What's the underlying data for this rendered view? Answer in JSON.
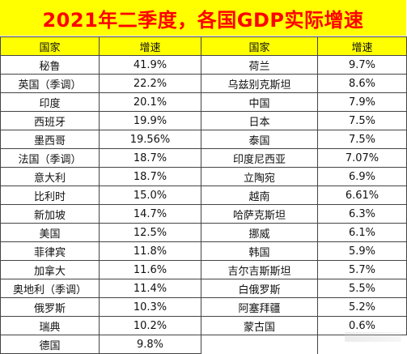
{
  "title": "2021年二季度，各国GDP实际增速",
  "headers": {
    "country": "国家",
    "growth": "增速"
  },
  "left_rows": [
    {
      "country": "秘鲁",
      "growth": "41.9%"
    },
    {
      "country": "英国（季调）",
      "growth": "22.2%"
    },
    {
      "country": "印度",
      "growth": "20.1%"
    },
    {
      "country": "西班牙",
      "growth": "19.9%"
    },
    {
      "country": "墨西哥",
      "growth": "19.56%"
    },
    {
      "country": "法国（季调）",
      "growth": "18.7%"
    },
    {
      "country": "意大利",
      "growth": "18.7%"
    },
    {
      "country": "比利时",
      "growth": "15.0%"
    },
    {
      "country": "新加坡",
      "growth": "14.7%"
    },
    {
      "country": "美国",
      "growth": "12.5%"
    },
    {
      "country": "菲律宾",
      "growth": "11.8%"
    },
    {
      "country": "加拿大",
      "growth": "11.6%"
    },
    {
      "country": "奥地利（季调）",
      "growth": "11.4%"
    },
    {
      "country": "俄罗斯",
      "growth": "10.3%"
    },
    {
      "country": "瑞典",
      "growth": "10.2%"
    },
    {
      "country": "德国",
      "growth": "9.8%"
    }
  ],
  "right_rows": [
    {
      "country": "荷兰",
      "growth": "9.7%"
    },
    {
      "country": "乌兹别克斯坦",
      "growth": "8.6%"
    },
    {
      "country": "中国",
      "growth": "7.9%"
    },
    {
      "country": "日本",
      "growth": "7.5%"
    },
    {
      "country": "泰国",
      "growth": "7.5%"
    },
    {
      "country": "印度尼西亚",
      "growth": "7.07%"
    },
    {
      "country": "立陶宛",
      "growth": "6.9%"
    },
    {
      "country": "越南",
      "growth": "6.61%"
    },
    {
      "country": "哈萨克斯坦",
      "growth": "6.3%"
    },
    {
      "country": "挪威",
      "growth": "6.1%"
    },
    {
      "country": "韩国",
      "growth": "5.9%"
    },
    {
      "country": "吉尔吉斯斯坦",
      "growth": "5.7%"
    },
    {
      "country": "白俄罗斯",
      "growth": "5.5%"
    },
    {
      "country": "阿塞拜疆",
      "growth": "5.2%"
    },
    {
      "country": "蒙古国",
      "growth": "0.6%"
    }
  ],
  "colors": {
    "title_background": "#FFFF00",
    "title_text": "#FF0000",
    "header_background": "#FFFF00",
    "grid": "#444444"
  }
}
